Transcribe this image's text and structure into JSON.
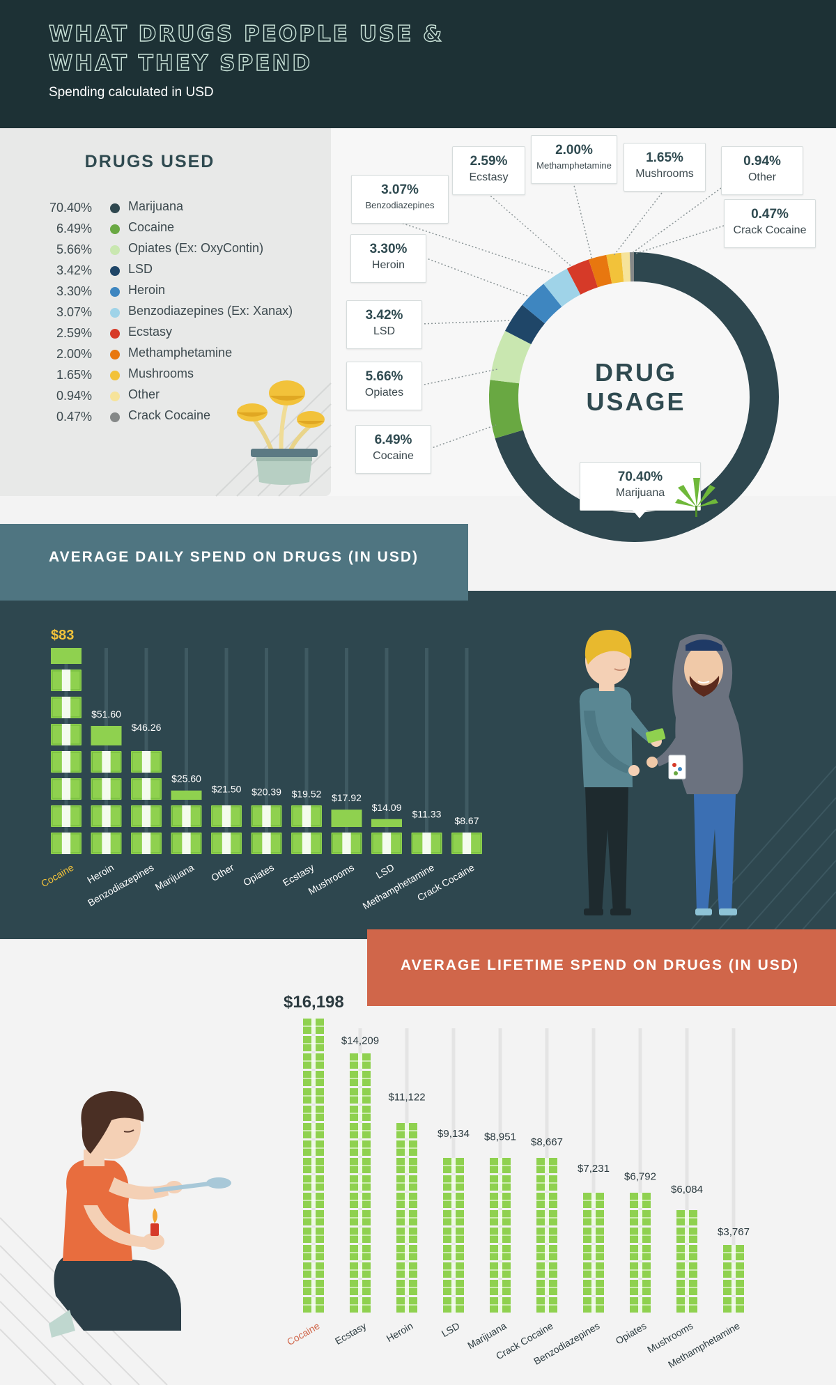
{
  "header": {
    "title": "WHAT DRUGS PEOPLE USE &\nWHAT THEY SPEND",
    "subtitle": "Spending calculated in USD"
  },
  "legend": {
    "title": "DRUGS USED",
    "items": [
      {
        "pct": "70.40%",
        "label": "Marijuana",
        "color": "#2e474f"
      },
      {
        "pct": "6.49%",
        "label": "Cocaine",
        "color": "#69a842"
      },
      {
        "pct": "5.66%",
        "label": "Opiates (Ex: OxyContin)",
        "color": "#c9e7b0"
      },
      {
        "pct": "3.42%",
        "label": "LSD",
        "color": "#1f4668"
      },
      {
        "pct": "3.30%",
        "label": "Heroin",
        "color": "#3e86c0"
      },
      {
        "pct": "3.07%",
        "label": "Benzodiazepines (Ex: Xanax)",
        "color": "#9fd3e8"
      },
      {
        "pct": "2.59%",
        "label": "Ecstasy",
        "color": "#d63a28"
      },
      {
        "pct": "2.00%",
        "label": "Methamphetamine",
        "color": "#e8770f"
      },
      {
        "pct": "1.65%",
        "label": "Mushrooms",
        "color": "#f2c23a"
      },
      {
        "pct": "0.94%",
        "label": "Other",
        "color": "#f6e39a"
      },
      {
        "pct": "0.47%",
        "label": "Crack Cocaine",
        "color": "#858888"
      }
    ]
  },
  "donut": {
    "center_label": "DRUG\nUSAGE",
    "callouts": [
      {
        "pct": "3.07%",
        "name": "Benzodiazepines"
      },
      {
        "pct": "2.59%",
        "name": "Ecstasy"
      },
      {
        "pct": "2.00%",
        "name": "Methamphetamine"
      },
      {
        "pct": "1.65%",
        "name": "Mushrooms"
      },
      {
        "pct": "0.94%",
        "name": "Other"
      },
      {
        "pct": "0.47%",
        "name": "Crack Cocaine"
      },
      {
        "pct": "3.30%",
        "name": "Heroin"
      },
      {
        "pct": "3.42%",
        "name": "LSD"
      },
      {
        "pct": "5.66%",
        "name": "Opiates"
      },
      {
        "pct": "6.49%",
        "name": "Cocaine"
      },
      {
        "pct": "70.40%",
        "name": "Marijuana"
      }
    ]
  },
  "daily": {
    "title": "AVERAGE DAILY SPEND ON DRUGS (IN USD)",
    "highlight_color": "#f2c23a"
  },
  "lifetime": {
    "title": "AVERAGE LIFETIME SPEND ON DRUGS (IN USD)",
    "highlight_color": "#d0664a"
  },
  "chart_data": [
    {
      "type": "pie",
      "title": "DRUG USAGE",
      "categories": [
        "Marijuana",
        "Cocaine",
        "Opiates",
        "LSD",
        "Heroin",
        "Benzodiazepines",
        "Ecstasy",
        "Methamphetamine",
        "Mushrooms",
        "Other",
        "Crack Cocaine"
      ],
      "values": [
        70.4,
        6.49,
        5.66,
        3.42,
        3.3,
        3.07,
        2.59,
        2.0,
        1.65,
        0.94,
        0.47
      ],
      "colors": [
        "#2e474f",
        "#69a842",
        "#c9e7b0",
        "#1f4668",
        "#3e86c0",
        "#9fd3e8",
        "#d63a28",
        "#e8770f",
        "#f2c23a",
        "#f6e39a",
        "#858888"
      ]
    },
    {
      "type": "bar",
      "title": "AVERAGE DAILY SPEND ON DRUGS (IN USD)",
      "categories": [
        "Cocaine",
        "Heroin",
        "Benzodiazepines",
        "Marijuana",
        "Other",
        "Opiates",
        "Ecstasy",
        "Mushrooms",
        "LSD",
        "Methamphetamine",
        "Crack Cocaine"
      ],
      "values": [
        83,
        51.6,
        46.26,
        25.6,
        21.5,
        20.39,
        19.52,
        17.92,
        14.09,
        11.33,
        8.67
      ],
      "labels": [
        "$83",
        "$51.60",
        "$46.26",
        "$25.60",
        "$21.50",
        "$20.39",
        "$19.52",
        "$17.92",
        "$14.09",
        "$11.33",
        "$8.67"
      ]
    },
    {
      "type": "bar",
      "title": "AVERAGE LIFETIME SPEND ON DRUGS (IN USD)",
      "categories": [
        "Cocaine",
        "Ecstasy",
        "Heroin",
        "LSD",
        "Marijuana",
        "Crack Cocaine",
        "Benzodiazepines",
        "Opiates",
        "Mushrooms",
        "Methamphetamine"
      ],
      "values": [
        16198,
        14209,
        11122,
        9134,
        8951,
        8667,
        7231,
        6792,
        6084,
        3767
      ],
      "labels": [
        "$16,198",
        "$14,209",
        "$11,122",
        "$9,134",
        "$8,951",
        "$8,667",
        "$7,231",
        "$6,792",
        "$6,084",
        "$3,767"
      ]
    }
  ]
}
